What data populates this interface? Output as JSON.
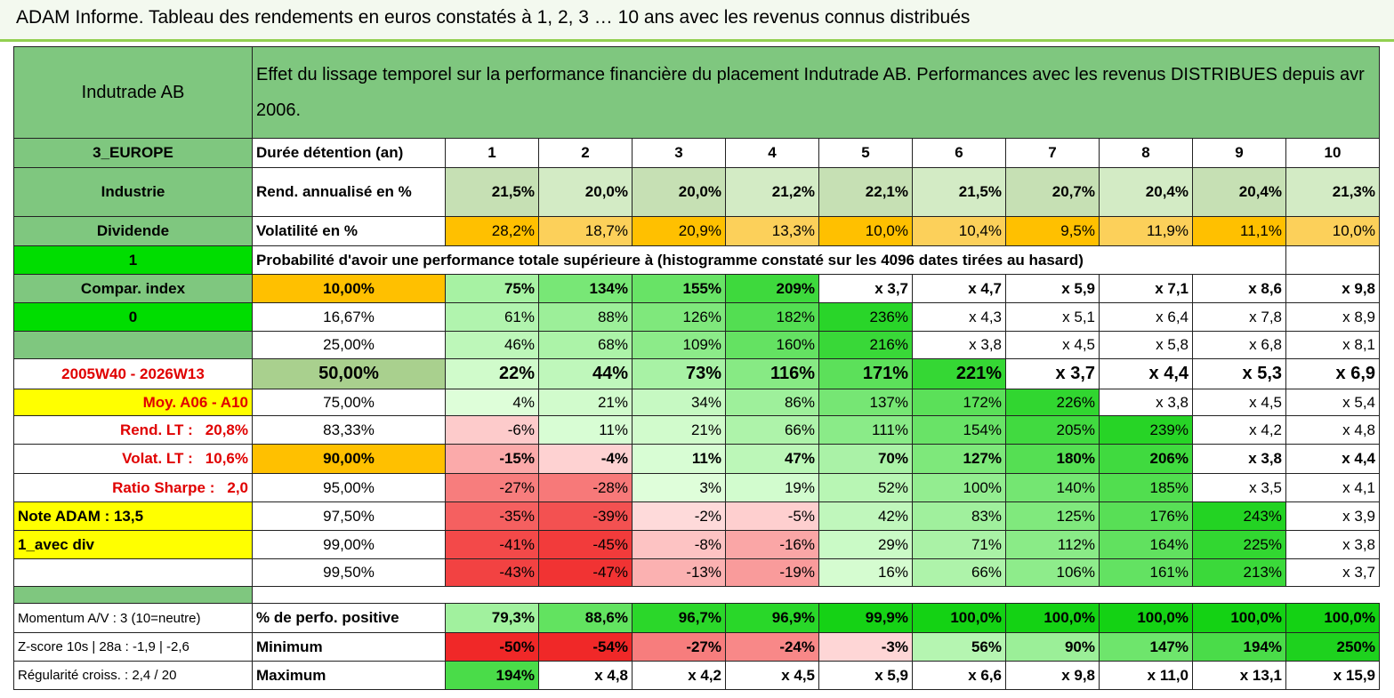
{
  "title": "ADAM Informe. Tableau des rendements en euros constatés à 1, 2, 3 … 10 ans avec les revenus connus distribués",
  "header": {
    "name": "Indutrade AB",
    "description": "Effet du lissage temporel sur la performance financière du placement Indutrade AB. Performances avec les revenus DISTRIBUES depuis avr 2006."
  },
  "rows": [
    {
      "label": "3_EUROPE",
      "caption": "Durée détention (an)",
      "cells": [
        "1",
        "2",
        "3",
        "4",
        "5",
        "6",
        "7",
        "8",
        "9",
        "10"
      ]
    },
    {
      "label": "Industrie",
      "caption": "Rend. annualisé en %",
      "cells": [
        "21,5%",
        "20,0%",
        "20,0%",
        "21,2%",
        "22,1%",
        "21,5%",
        "20,7%",
        "20,4%",
        "20,4%",
        "21,3%"
      ]
    },
    {
      "label": "Dividende",
      "caption": "Volatilité en %",
      "cells": [
        "28,2%",
        "18,7%",
        "20,9%",
        "13,3%",
        "10,0%",
        "10,4%",
        "9,5%",
        "11,9%",
        "11,1%",
        "10,0%"
      ]
    },
    {
      "label": "1",
      "caption": "Probabilité d'avoir une performance totale supérieure à (histogramme constaté sur les 4096 dates tirées au hasard)"
    },
    {
      "label": "Compar. index",
      "caption": "10,00%",
      "cells": [
        "75%",
        "134%",
        "155%",
        "209%",
        "x 3,7",
        "x 4,7",
        "x 5,9",
        "x 7,1",
        "x 8,6",
        "x 9,8"
      ]
    },
    {
      "label": "0",
      "caption": "16,67%",
      "cells": [
        "61%",
        "88%",
        "126%",
        "182%",
        "236%",
        "x 4,3",
        "x 5,1",
        "x 6,4",
        "x 7,8",
        "x 8,9"
      ]
    },
    {
      "caption": "25,00%",
      "cells": [
        "46%",
        "68%",
        "109%",
        "160%",
        "216%",
        "x 3,8",
        "x 4,5",
        "x 5,8",
        "x 6,8",
        "x 8,1"
      ]
    },
    {
      "label": "2005W40 - 2026W13",
      "caption": "50,00%",
      "cells": [
        "22%",
        "44%",
        "73%",
        "116%",
        "171%",
        "221%",
        "x 3,7",
        "x 4,4",
        "x 5,3",
        "x 6,9"
      ]
    },
    {
      "label": "Moy. A06 - A10",
      "caption": "75,00%",
      "cells": [
        "4%",
        "21%",
        "34%",
        "86%",
        "137%",
        "172%",
        "226%",
        "x 3,8",
        "x 4,5",
        "x 5,4"
      ]
    },
    {
      "label": "Rend. LT :",
      "label_value": "20,8%",
      "caption": "83,33%",
      "cells": [
        "-6%",
        "11%",
        "21%",
        "66%",
        "111%",
        "154%",
        "205%",
        "239%",
        "x 4,2",
        "x 4,8"
      ]
    },
    {
      "label": "Volat. LT :",
      "label_value": "10,6%",
      "caption": "90,00%",
      "cells": [
        "-15%",
        "-4%",
        "11%",
        "47%",
        "70%",
        "127%",
        "180%",
        "206%",
        "x 3,8",
        "x 4,4"
      ]
    },
    {
      "label": "Ratio Sharpe :",
      "label_value": "2,0",
      "caption": "95,00%",
      "cells": [
        "-27%",
        "-28%",
        "3%",
        "19%",
        "52%",
        "100%",
        "140%",
        "185%",
        "x 3,5",
        "x 4,1"
      ]
    },
    {
      "label": "Note ADAM : 13,5",
      "caption": "97,50%",
      "cells": [
        "-35%",
        "-39%",
        "-2%",
        "-5%",
        "42%",
        "83%",
        "125%",
        "176%",
        "243%",
        "x 3,9"
      ]
    },
    {
      "label": "1_avec div",
      "caption": "99,00%",
      "cells": [
        "-41%",
        "-45%",
        "-8%",
        "-16%",
        "29%",
        "71%",
        "112%",
        "164%",
        "225%",
        "x 3,8"
      ]
    },
    {
      "caption": "99,50%",
      "cells": [
        "-43%",
        "-47%",
        "-13%",
        "-19%",
        "16%",
        "66%",
        "106%",
        "161%",
        "213%",
        "x 3,7"
      ]
    },
    {
      "label": "Momentum A/V : 3 (10=neutre)",
      "caption": "% de perfo. positive",
      "cells": [
        "79,3%",
        "88,6%",
        "96,7%",
        "96,9%",
        "99,9%",
        "100,0%",
        "100,0%",
        "100,0%",
        "100,0%",
        "100,0%"
      ]
    },
    {
      "label": "Z-score 10s | 28a : -1,9 | -2,6",
      "caption": "Minimum",
      "cells": [
        "-50%",
        "-54%",
        "-27%",
        "-24%",
        "-3%",
        "56%",
        "90%",
        "147%",
        "194%",
        "250%"
      ]
    },
    {
      "label": "Régularité croiss. : 2,4 / 20",
      "caption": "Maximum",
      "cells": [
        "194%",
        "x 4,8",
        "x 4,2",
        "x 4,5",
        "x 5,9",
        "x 6,6",
        "x 9,8",
        "x 11,0",
        "x 13,1",
        "x 15,9"
      ]
    }
  ]
}
